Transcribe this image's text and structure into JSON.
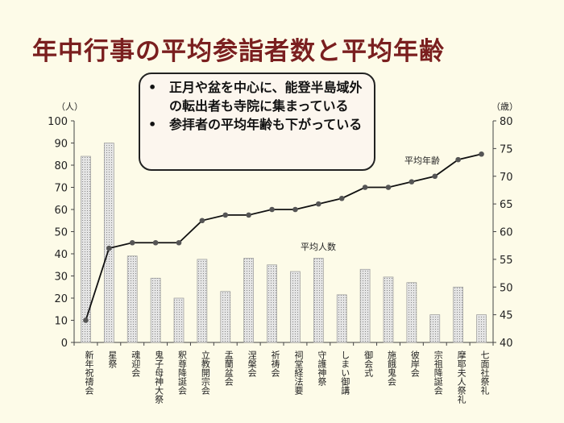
{
  "title": "年中行事の平均参詣者数と平均年齢",
  "callout": {
    "bullets": [
      "正月や盆を中心に、能登半島域外の転出者も寺院に集まっている",
      "参拝者の平均年齢も下がっている"
    ]
  },
  "chart_data": {
    "type": "bar+line",
    "title": "",
    "categories": [
      "新年祝禱会",
      "星祭",
      "魂迎会",
      "鬼子母神大祭",
      "釈尊降誕会",
      "立教開宗会",
      "盂蘭盆会",
      "涅槃会",
      "祈祷会",
      "祠堂経法要",
      "守護神祭",
      "しまい御講",
      "御会式",
      "施餓鬼会",
      "彼岸会",
      "宗祖降誕会",
      "摩耶夫人祭礼",
      "七面社祭礼"
    ],
    "series": [
      {
        "name": "平均人数",
        "type": "bar",
        "axis": "left",
        "values": [
          84,
          90,
          39,
          29,
          20,
          37.5,
          23,
          38,
          35,
          32,
          38,
          21.5,
          33,
          29.5,
          27,
          12.5,
          25,
          12.5
        ]
      },
      {
        "name": "平均年齢",
        "type": "line",
        "axis": "right",
        "values": [
          44,
          57,
          58,
          58,
          58,
          62,
          63,
          63,
          64,
          64,
          65,
          66,
          68,
          68,
          69,
          70,
          73,
          74
        ]
      }
    ],
    "ylabel": "（人）",
    "y2label": "（歳）",
    "ylim": [
      0,
      100
    ],
    "y2lim": [
      40,
      80
    ],
    "yticks": [
      0,
      10,
      20,
      30,
      40,
      50,
      60,
      70,
      80,
      90,
      100
    ],
    "y2ticks": [
      40,
      45,
      50,
      55,
      60,
      65,
      70,
      75,
      80
    ],
    "grid": false,
    "colors": {
      "bar": "#c8c8c8",
      "line": "#111111",
      "marker": "#555555"
    }
  }
}
